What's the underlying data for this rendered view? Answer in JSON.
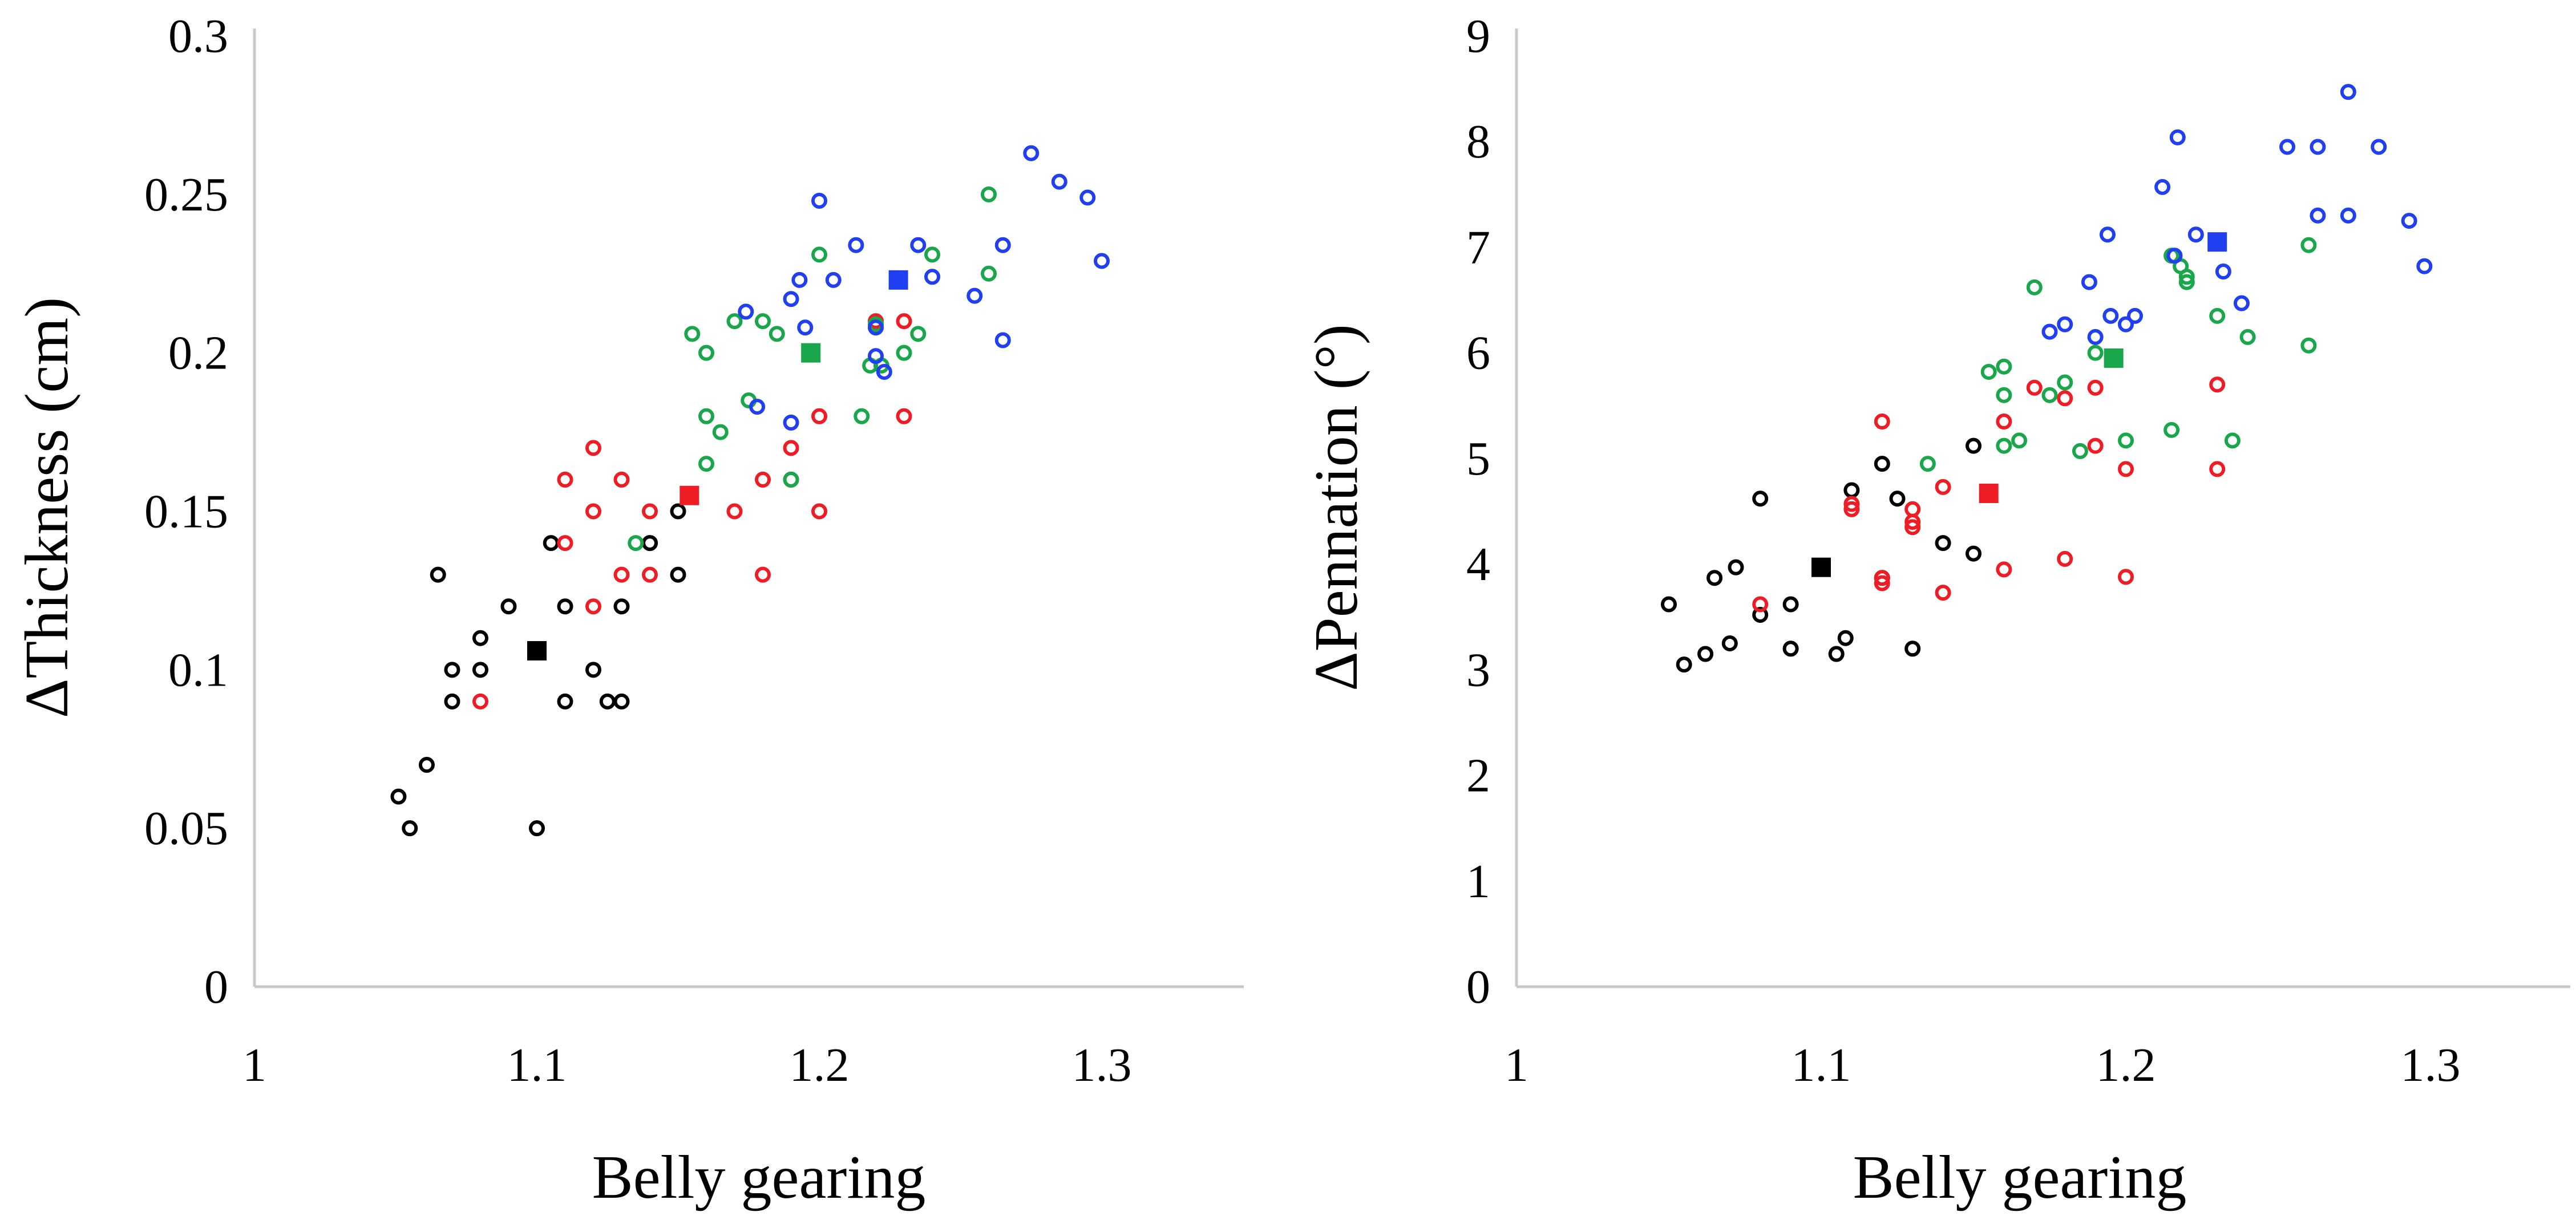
{
  "colors": {
    "axis": "#c8c8c8",
    "black": "#000000",
    "red": "#ee1c25",
    "green": "#1aa64b",
    "blue": "#1f3ff0"
  },
  "chart_data": [
    {
      "type": "scatter",
      "title": "",
      "xlabel": "Belly gearing",
      "ylabel": "ΔThickness (cm)",
      "xlim": [
        1,
        1.35
      ],
      "ylim": [
        0,
        0.3
      ],
      "xticks": [
        1,
        1.1,
        1.2,
        1.3
      ],
      "xtick_labels": [
        "1",
        "1.1",
        "1.2",
        "1.3"
      ],
      "yticks": [
        0,
        0.05,
        0.1,
        0.15,
        0.2,
        0.25,
        0.3
      ],
      "ytick_labels": [
        "0",
        "0.05",
        "0.1",
        "0.15",
        "0.2",
        "0.25",
        "0.3"
      ],
      "series": [
        {
          "name": "black",
          "color": "#000000",
          "points": [
            [
              1.051,
              0.06
            ],
            [
              1.055,
              0.05
            ],
            [
              1.061,
              0.07
            ],
            [
              1.065,
              0.13
            ],
            [
              1.07,
              0.1
            ],
            [
              1.07,
              0.09
            ],
            [
              1.08,
              0.11
            ],
            [
              1.08,
              0.1
            ],
            [
              1.09,
              0.12
            ],
            [
              1.1,
              0.05
            ],
            [
              1.105,
              0.14
            ],
            [
              1.11,
              0.12
            ],
            [
              1.11,
              0.09
            ],
            [
              1.12,
              0.1
            ],
            [
              1.125,
              0.09
            ],
            [
              1.13,
              0.12
            ],
            [
              1.13,
              0.09
            ],
            [
              1.14,
              0.14
            ],
            [
              1.14,
              0.14
            ],
            [
              1.15,
              0.15
            ],
            [
              1.15,
              0.13
            ]
          ],
          "mean": [
            1.1,
            0.106
          ]
        },
        {
          "name": "red",
          "color": "#ee1c25",
          "points": [
            [
              1.08,
              0.09
            ],
            [
              1.11,
              0.16
            ],
            [
              1.11,
              0.14
            ],
            [
              1.12,
              0.17
            ],
            [
              1.12,
              0.15
            ],
            [
              1.12,
              0.12
            ],
            [
              1.13,
              0.16
            ],
            [
              1.13,
              0.13
            ],
            [
              1.14,
              0.15
            ],
            [
              1.14,
              0.13
            ],
            [
              1.17,
              0.15
            ],
            [
              1.18,
              0.16
            ],
            [
              1.18,
              0.13
            ],
            [
              1.19,
              0.17
            ],
            [
              1.19,
              0.16
            ],
            [
              1.2,
              0.18
            ],
            [
              1.2,
              0.15
            ],
            [
              1.22,
              0.21
            ],
            [
              1.23,
              0.21
            ],
            [
              1.23,
              0.18
            ]
          ],
          "mean": [
            1.154,
            0.155
          ]
        },
        {
          "name": "green",
          "color": "#1aa64b",
          "points": [
            [
              1.135,
              0.14
            ],
            [
              1.155,
              0.206
            ],
            [
              1.16,
              0.2
            ],
            [
              1.16,
              0.18
            ],
            [
              1.16,
              0.165
            ],
            [
              1.165,
              0.175
            ],
            [
              1.17,
              0.21
            ],
            [
              1.175,
              0.185
            ],
            [
              1.18,
              0.21
            ],
            [
              1.185,
              0.206
            ],
            [
              1.19,
              0.16
            ],
            [
              1.2,
              0.231
            ],
            [
              1.215,
              0.18
            ],
            [
              1.218,
              0.196
            ],
            [
              1.22,
              0.209
            ],
            [
              1.222,
              0.196
            ],
            [
              1.23,
              0.2
            ],
            [
              1.235,
              0.206
            ],
            [
              1.24,
              0.231
            ],
            [
              1.26,
              0.225
            ],
            [
              1.26,
              0.25
            ]
          ],
          "mean": [
            1.197,
            0.2
          ]
        },
        {
          "name": "blue",
          "color": "#1f3ff0",
          "points": [
            [
              1.174,
              0.213
            ],
            [
              1.178,
              0.183
            ],
            [
              1.19,
              0.178
            ],
            [
              1.19,
              0.217
            ],
            [
              1.193,
              0.223
            ],
            [
              1.195,
              0.208
            ],
            [
              1.2,
              0.248
            ],
            [
              1.205,
              0.223
            ],
            [
              1.213,
              0.234
            ],
            [
              1.22,
              0.208
            ],
            [
              1.22,
              0.199
            ],
            [
              1.223,
              0.194
            ],
            [
              1.235,
              0.234
            ],
            [
              1.24,
              0.224
            ],
            [
              1.255,
              0.218
            ],
            [
              1.265,
              0.234
            ],
            [
              1.265,
              0.204
            ],
            [
              1.275,
              0.263
            ],
            [
              1.285,
              0.254
            ],
            [
              1.295,
              0.249
            ],
            [
              1.3,
              0.229
            ]
          ],
          "mean": [
            1.228,
            0.223
          ]
        }
      ]
    },
    {
      "type": "scatter",
      "title": "",
      "xlabel": "Belly gearing",
      "ylabel": "ΔPennation (°)",
      "xlim": [
        1,
        1.35
      ],
      "ylim": [
        0,
        9
      ],
      "xticks": [
        1,
        1.1,
        1.2,
        1.3
      ],
      "xtick_labels": [
        "1",
        "1.1",
        "1.2",
        "1.3"
      ],
      "yticks": [
        0,
        1,
        2,
        3,
        4,
        5,
        6,
        7,
        8,
        9
      ],
      "ytick_labels": [
        "0",
        "1",
        "2",
        "3",
        "4",
        "5",
        "6",
        "7",
        "8",
        "9"
      ],
      "series": [
        {
          "name": "black",
          "color": "#000000",
          "points": [
            [
              1.05,
              3.62
            ],
            [
              1.055,
              3.05
            ],
            [
              1.062,
              3.15
            ],
            [
              1.065,
              3.87
            ],
            [
              1.07,
              3.25
            ],
            [
              1.072,
              3.97
            ],
            [
              1.08,
              4.62
            ],
            [
              1.08,
              3.52
            ],
            [
              1.09,
              3.62
            ],
            [
              1.09,
              3.2
            ],
            [
              1.1,
              3.97
            ],
            [
              1.105,
              3.15
            ],
            [
              1.108,
              3.3
            ],
            [
              1.11,
              4.7
            ],
            [
              1.12,
              4.95
            ],
            [
              1.12,
              3.87
            ],
            [
              1.125,
              4.62
            ],
            [
              1.13,
              3.2
            ],
            [
              1.14,
              4.2
            ],
            [
              1.15,
              5.12
            ],
            [
              1.15,
              4.1
            ]
          ],
          "mean": [
            1.1,
            3.97
          ]
        },
        {
          "name": "red",
          "color": "#ee1c25",
          "points": [
            [
              1.08,
              3.62
            ],
            [
              1.11,
              4.57
            ],
            [
              1.11,
              4.52
            ],
            [
              1.12,
              5.35
            ],
            [
              1.12,
              3.87
            ],
            [
              1.12,
              3.82
            ],
            [
              1.13,
              4.52
            ],
            [
              1.13,
              4.4
            ],
            [
              1.13,
              4.35
            ],
            [
              1.14,
              4.73
            ],
            [
              1.14,
              3.73
            ],
            [
              1.16,
              5.35
            ],
            [
              1.16,
              3.95
            ],
            [
              1.17,
              5.67
            ],
            [
              1.18,
              5.57
            ],
            [
              1.18,
              4.05
            ],
            [
              1.19,
              5.67
            ],
            [
              1.19,
              5.12
            ],
            [
              1.2,
              4.9
            ],
            [
              1.2,
              3.88
            ],
            [
              1.23,
              5.7
            ],
            [
              1.23,
              4.9
            ]
          ],
          "mean": [
            1.155,
            4.67
          ]
        },
        {
          "name": "green",
          "color": "#1aa64b",
          "points": [
            [
              1.135,
              4.95
            ],
            [
              1.155,
              5.82
            ],
            [
              1.16,
              5.87
            ],
            [
              1.16,
              5.6
            ],
            [
              1.16,
              5.12
            ],
            [
              1.165,
              5.17
            ],
            [
              1.17,
              6.62
            ],
            [
              1.175,
              5.6
            ],
            [
              1.18,
              5.72
            ],
            [
              1.185,
              5.07
            ],
            [
              1.19,
              6.0
            ],
            [
              1.2,
              5.17
            ],
            [
              1.215,
              6.92
            ],
            [
              1.215,
              5.27
            ],
            [
              1.218,
              6.82
            ],
            [
              1.22,
              6.72
            ],
            [
              1.22,
              6.67
            ],
            [
              1.23,
              6.35
            ],
            [
              1.235,
              5.17
            ],
            [
              1.24,
              6.15
            ],
            [
              1.26,
              7.02
            ],
            [
              1.26,
              6.07
            ]
          ],
          "mean": [
            1.196,
            5.95
          ]
        },
        {
          "name": "blue",
          "color": "#1f3ff0",
          "points": [
            [
              1.175,
              6.2
            ],
            [
              1.18,
              6.27
            ],
            [
              1.188,
              6.67
            ],
            [
              1.19,
              6.15
            ],
            [
              1.194,
              7.12
            ],
            [
              1.195,
              6.35
            ],
            [
              1.2,
              6.27
            ],
            [
              1.203,
              6.35
            ],
            [
              1.212,
              7.57
            ],
            [
              1.216,
              6.92
            ],
            [
              1.217,
              8.04
            ],
            [
              1.223,
              7.12
            ],
            [
              1.232,
              6.77
            ],
            [
              1.238,
              6.47
            ],
            [
              1.253,
              7.95
            ],
            [
              1.263,
              7.95
            ],
            [
              1.263,
              7.3
            ],
            [
              1.273,
              8.47
            ],
            [
              1.273,
              7.3
            ],
            [
              1.283,
              7.95
            ],
            [
              1.293,
              7.25
            ],
            [
              1.298,
              6.82
            ]
          ],
          "mean": [
            1.23,
            7.05
          ]
        }
      ]
    }
  ]
}
